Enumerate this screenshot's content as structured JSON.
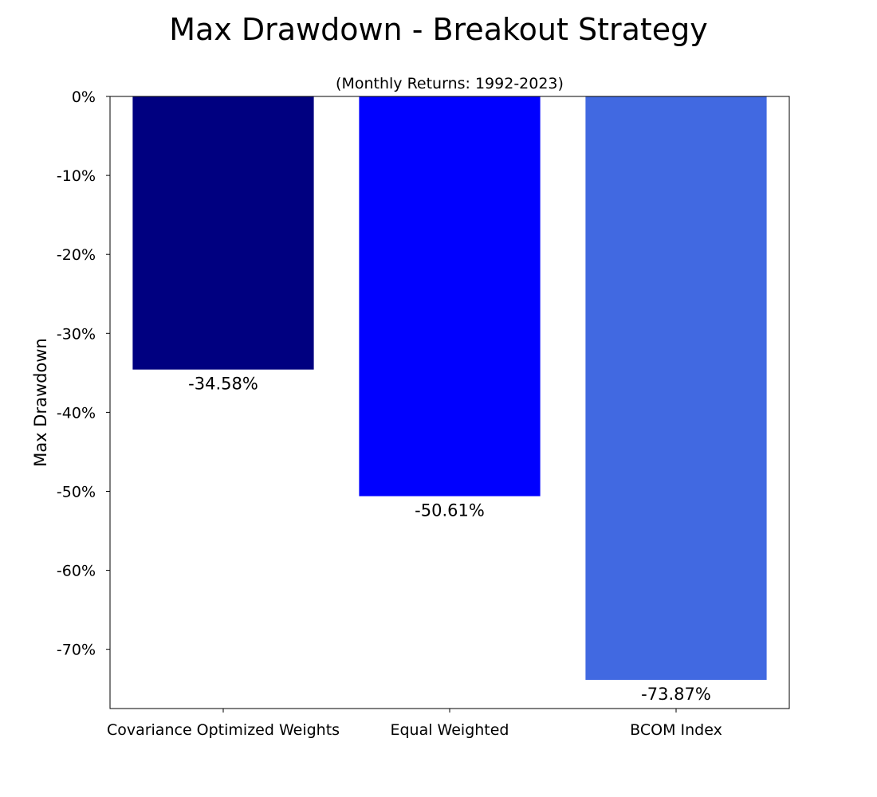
{
  "chart_data": {
    "type": "bar",
    "title": "Max Drawdown - Breakout Strategy",
    "subtitle": "(Monthly Returns: 1992-2023)",
    "xlabel": "",
    "ylabel": "Max Drawdown",
    "categories": [
      "Covariance Optimized Weights",
      "Equal Weighted",
      "BCOM Index"
    ],
    "values": [
      -34.58,
      -50.61,
      -73.87
    ],
    "value_labels": [
      "-34.58%",
      "-50.61%",
      "-73.87%"
    ],
    "bar_colors": [
      "#000080",
      "#0000ff",
      "#4169e1"
    ],
    "ylim": [
      -77.5,
      0
    ],
    "y_ticks": [
      0,
      -10,
      -20,
      -30,
      -40,
      -50,
      -60,
      -70
    ],
    "y_tick_labels": [
      "0%",
      "-10%",
      "-20%",
      "-30%",
      "-40%",
      "-50%",
      "-60%",
      "-70%"
    ],
    "grid": false,
    "legend": "none"
  }
}
